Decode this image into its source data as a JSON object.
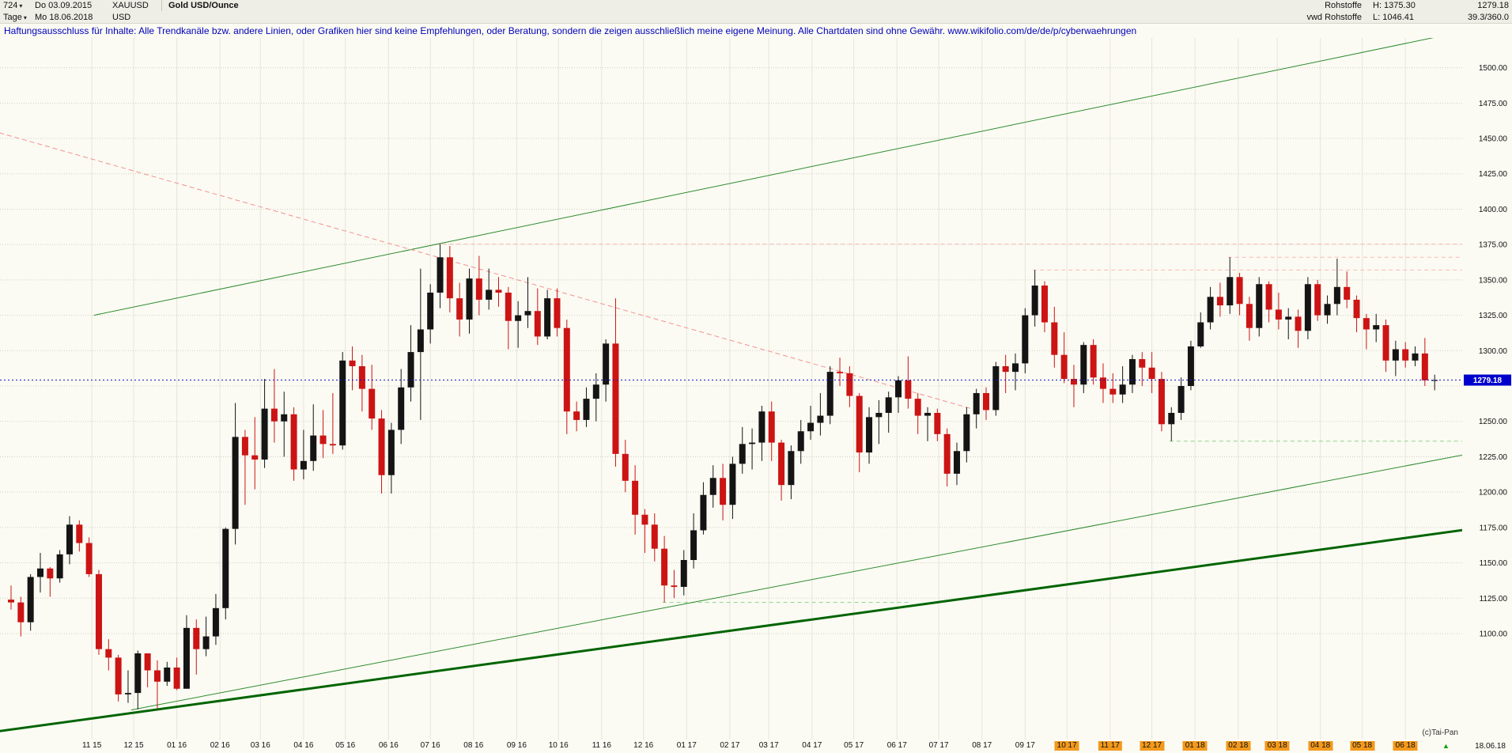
{
  "icons": {
    "chevron_down": "▾",
    "up_triangle": "▲"
  },
  "header": {
    "left": {
      "bars_value": "724",
      "timeframe": "Tage",
      "start_date": "Do 03.09.2015",
      "end_date": "Mo 18.06.2018",
      "symbol": "XAUUSD",
      "currency": "USD",
      "instrument": "Gold USD/Ounce"
    },
    "right": {
      "category": "Rohstoffe",
      "source": "vwd Rohstoffe",
      "high": "H: 1375.30",
      "low": "L: 1046.41",
      "last": "1279.18",
      "ratio": "39.3/360.0"
    }
  },
  "disclaimer": "Haftungsausschluss für Inhalte: Alle Trendkanäle bzw. andere Linien, oder Grafiken hier sind keine Empfehlungen, oder Beratung, sondern die zeigen ausschließlich meine eigene Meinung. Alle Chartdaten sind ohne Gewähr.  www.wikifolio.com/de/de/p/cyberwaehrungen",
  "footer": {
    "copyright": "(c)Tai-Pan",
    "last_date": "18.06.18"
  },
  "chart_data": {
    "type": "candlestick",
    "title": "Gold USD/Ounce",
    "symbol": "XAUUSD",
    "timeframe": "Tage",
    "x_start": "2015-09-04",
    "x_end": "2018-06-18",
    "ylim": [
      1026,
      1514
    ],
    "high": 1375.3,
    "low": 1046.41,
    "current_price": 1279.18,
    "current": {
      "display": "1279.18",
      "color": "#1414cc",
      "tag_bg": "#0000cd",
      "tag_fg": "#ffffff",
      "dash": "2,3"
    },
    "grid_ticks": [
      1100,
      1125,
      1150,
      1175,
      1200,
      1225,
      1250,
      1275,
      1300,
      1325,
      1350,
      1375,
      1400,
      1425,
      1450,
      1475,
      1500
    ],
    "label_ticks": [
      1500,
      1475,
      1450,
      1425,
      1400,
      1375,
      1350,
      1325,
      1300,
      1250,
      1225,
      1200,
      1175,
      1150,
      1125,
      1100
    ],
    "colors": {
      "up": "#141414",
      "down": "#cc1414",
      "grid_v": "#e6e5db",
      "grid_h": "#cfcfc5"
    },
    "months": [
      {
        "label": "11 15",
        "hl": false
      },
      {
        "label": "12 15",
        "hl": false
      },
      {
        "label": "01 16",
        "hl": false
      },
      {
        "label": "02 16",
        "hl": false
      },
      {
        "label": "03 16",
        "hl": false
      },
      {
        "label": "04 16",
        "hl": false
      },
      {
        "label": "05 16",
        "hl": false
      },
      {
        "label": "06 16",
        "hl": false
      },
      {
        "label": "07 16",
        "hl": false
      },
      {
        "label": "08 16",
        "hl": false
      },
      {
        "label": "09 16",
        "hl": false
      },
      {
        "label": "10 16",
        "hl": false
      },
      {
        "label": "11 16",
        "hl": false
      },
      {
        "label": "12 16",
        "hl": false
      },
      {
        "label": "01 17",
        "hl": false
      },
      {
        "label": "02 17",
        "hl": false
      },
      {
        "label": "03 17",
        "hl": false
      },
      {
        "label": "04 17",
        "hl": false
      },
      {
        "label": "05 17",
        "hl": false
      },
      {
        "label": "06 17",
        "hl": false
      },
      {
        "label": "07 17",
        "hl": false
      },
      {
        "label": "08 17",
        "hl": false
      },
      {
        "label": "09 17",
        "hl": false
      },
      {
        "label": "10 17",
        "hl": true
      },
      {
        "label": "11 17",
        "hl": true
      },
      {
        "label": "12 17",
        "hl": true
      },
      {
        "label": "01 18",
        "hl": true
      },
      {
        "label": "02 18",
        "hl": true
      },
      {
        "label": "03 18",
        "hl": true
      },
      {
        "label": "04 18",
        "hl": true
      },
      {
        "label": "05 18",
        "hl": true
      },
      {
        "label": "06 18",
        "hl": true
      }
    ],
    "trendlines": [
      {
        "name": "upper-channel-line",
        "p1": [
          8.5,
          1325
        ],
        "p2": [
          152,
          1530
        ],
        "color": "#2e8b2e",
        "width": 1,
        "dash": null
      },
      {
        "name": "inner-support-line",
        "p1": [
          12.3,
          1046
        ],
        "p2": [
          154,
          1233
        ],
        "color": "#2e8b2e",
        "width": 1,
        "dash": null
      },
      {
        "name": "main-support-line",
        "p1": [
          -1.2,
          1031
        ],
        "p2": [
          154,
          1178
        ],
        "color": "#006400",
        "width": 3,
        "dash": null
      },
      {
        "name": "falling-resistance-line",
        "p1": [
          -1.2,
          1454
        ],
        "p2": [
          99,
          1258
        ],
        "color": "#f49090",
        "width": 1,
        "dash": "6,4"
      }
    ],
    "hlines": [
      {
        "name": "high-1375-line",
        "price": 1375.3,
        "from": 43.5,
        "to": 154,
        "color": "#ffb6b6",
        "dash": "5,4"
      },
      {
        "name": "high-1357-line",
        "price": 1357,
        "from": 104.8,
        "to": 154,
        "color": "#ffb6b6",
        "dash": "5,4"
      },
      {
        "name": "high-1366-line",
        "price": 1366,
        "from": 124.8,
        "to": 154,
        "color": "#ffb6b6",
        "dash": "5,4"
      },
      {
        "name": "low-1236-line",
        "price": 1236,
        "from": 118.8,
        "to": 154,
        "color": "#8fd48f",
        "dash": "5,4"
      },
      {
        "name": "low-1122-line",
        "price": 1122,
        "from": 66.8,
        "to": 92,
        "color": "#8fd48f",
        "dash": "5,4"
      }
    ],
    "weekly_ohlc": [
      [
        1124,
        1134,
        1117,
        1122
      ],
      [
        1122,
        1126,
        1098,
        1108
      ],
      [
        1108,
        1142,
        1102,
        1140
      ],
      [
        1140,
        1157,
        1129,
        1146
      ],
      [
        1146,
        1147,
        1126,
        1139
      ],
      [
        1139,
        1159,
        1136,
        1156
      ],
      [
        1156,
        1183,
        1149,
        1177
      ],
      [
        1177,
        1180,
        1158,
        1164
      ],
      [
        1164,
        1168,
        1140,
        1142
      ],
      [
        1142,
        1145,
        1085,
        1089
      ],
      [
        1089,
        1096,
        1074,
        1083
      ],
      [
        1083,
        1085,
        1052,
        1057
      ],
      [
        1057,
        1074,
        1051,
        1058
      ],
      [
        1058,
        1088,
        1046.4,
        1086
      ],
      [
        1086,
        1086,
        1062,
        1074
      ],
      [
        1074,
        1081,
        1047,
        1066
      ],
      [
        1066,
        1080,
        1063,
        1076
      ],
      [
        1076,
        1083,
        1060,
        1061
      ],
      [
        1061,
        1113,
        1061,
        1104
      ],
      [
        1104,
        1110,
        1071,
        1089
      ],
      [
        1089,
        1112,
        1084,
        1098
      ],
      [
        1098,
        1128,
        1092,
        1118
      ],
      [
        1118,
        1175,
        1110,
        1174
      ],
      [
        1174,
        1263,
        1163,
        1239
      ],
      [
        1239,
        1244,
        1191,
        1226
      ],
      [
        1226,
        1253,
        1202,
        1223
      ],
      [
        1223,
        1280,
        1217,
        1259
      ],
      [
        1259,
        1287,
        1235,
        1250
      ],
      [
        1250,
        1271,
        1225,
        1255
      ],
      [
        1255,
        1260,
        1208,
        1216
      ],
      [
        1216,
        1244,
        1209,
        1222
      ],
      [
        1222,
        1262,
        1215,
        1240
      ],
      [
        1240,
        1258,
        1224,
        1234
      ],
      [
        1234,
        1270,
        1227,
        1233
      ],
      [
        1233,
        1299,
        1230,
        1293
      ],
      [
        1293,
        1303,
        1272,
        1289
      ],
      [
        1289,
        1297,
        1257,
        1273
      ],
      [
        1273,
        1290,
        1244,
        1252
      ],
      [
        1252,
        1258,
        1199,
        1212
      ],
      [
        1212,
        1249,
        1199,
        1244
      ],
      [
        1244,
        1287,
        1234,
        1274
      ],
      [
        1274,
        1318,
        1264,
        1299
      ],
      [
        1299,
        1358,
        1251,
        1315
      ],
      [
        1315,
        1347,
        1305,
        1341
      ],
      [
        1341,
        1375.3,
        1330,
        1366
      ],
      [
        1366,
        1374,
        1327,
        1337
      ],
      [
        1337,
        1348,
        1310,
        1322
      ],
      [
        1322,
        1358,
        1312,
        1351
      ],
      [
        1351,
        1367,
        1325,
        1336
      ],
      [
        1336,
        1358,
        1329,
        1343
      ],
      [
        1343,
        1352,
        1331,
        1341
      ],
      [
        1341,
        1345,
        1301,
        1321
      ],
      [
        1321,
        1335,
        1302,
        1325
      ],
      [
        1325,
        1352,
        1316,
        1328
      ],
      [
        1328,
        1344,
        1304,
        1310
      ],
      [
        1310,
        1343,
        1308,
        1337
      ],
      [
        1337,
        1344,
        1310,
        1316
      ],
      [
        1316,
        1322,
        1241,
        1257
      ],
      [
        1257,
        1264,
        1243,
        1251
      ],
      [
        1251,
        1274,
        1246,
        1266
      ],
      [
        1266,
        1284,
        1250,
        1276
      ],
      [
        1276,
        1308,
        1264,
        1305
      ],
      [
        1305,
        1337,
        1218,
        1227
      ],
      [
        1227,
        1237,
        1200,
        1208
      ],
      [
        1208,
        1219,
        1170,
        1184
      ],
      [
        1184,
        1188,
        1157,
        1177
      ],
      [
        1177,
        1185,
        1151,
        1160
      ],
      [
        1160,
        1169,
        1122,
        1134
      ],
      [
        1134,
        1145,
        1125,
        1133
      ],
      [
        1133,
        1159,
        1127,
        1152
      ],
      [
        1152,
        1185,
        1146,
        1173
      ],
      [
        1173,
        1207,
        1170,
        1198
      ],
      [
        1198,
        1219,
        1189,
        1210
      ],
      [
        1210,
        1220,
        1180,
        1191
      ],
      [
        1191,
        1225,
        1181,
        1220
      ],
      [
        1220,
        1246,
        1213,
        1234
      ],
      [
        1234,
        1245,
        1216,
        1235
      ],
      [
        1235,
        1261,
        1222,
        1257
      ],
      [
        1257,
        1264,
        1222,
        1235
      ],
      [
        1235,
        1237,
        1194,
        1205
      ],
      [
        1205,
        1233,
        1195,
        1229
      ],
      [
        1229,
        1251,
        1220,
        1243
      ],
      [
        1243,
        1261,
        1237,
        1249
      ],
      [
        1249,
        1270,
        1240,
        1254
      ],
      [
        1254,
        1289,
        1248,
        1285
      ],
      [
        1285,
        1295,
        1275,
        1284
      ],
      [
        1284,
        1289,
        1260,
        1268
      ],
      [
        1268,
        1270,
        1214,
        1228
      ],
      [
        1228,
        1260,
        1220,
        1253
      ],
      [
        1253,
        1265,
        1234,
        1256
      ],
      [
        1256,
        1271,
        1242,
        1267
      ],
      [
        1267,
        1282,
        1256,
        1279
      ],
      [
        1279,
        1296,
        1259,
        1266
      ],
      [
        1266,
        1270,
        1241,
        1254
      ],
      [
        1254,
        1260,
        1236,
        1256
      ],
      [
        1256,
        1259,
        1236,
        1241
      ],
      [
        1241,
        1245,
        1204,
        1213
      ],
      [
        1213,
        1235,
        1205,
        1229
      ],
      [
        1229,
        1260,
        1221,
        1255
      ],
      [
        1255,
        1273,
        1245,
        1270
      ],
      [
        1270,
        1274,
        1251,
        1258
      ],
      [
        1258,
        1292,
        1254,
        1289
      ],
      [
        1289,
        1297,
        1270,
        1285
      ],
      [
        1285,
        1298,
        1272,
        1291
      ],
      [
        1291,
        1330,
        1284,
        1325
      ],
      [
        1325,
        1357,
        1317,
        1346
      ],
      [
        1346,
        1349,
        1313,
        1320
      ],
      [
        1320,
        1331,
        1288,
        1297
      ],
      [
        1297,
        1313,
        1277,
        1280
      ],
      [
        1280,
        1290,
        1260,
        1276
      ],
      [
        1276,
        1306,
        1270,
        1304
      ],
      [
        1304,
        1308,
        1276,
        1281
      ],
      [
        1281,
        1291,
        1263,
        1273
      ],
      [
        1273,
        1284,
        1263,
        1269
      ],
      [
        1269,
        1289,
        1263,
        1276
      ],
      [
        1276,
        1297,
        1270,
        1294
      ],
      [
        1294,
        1299,
        1275,
        1288
      ],
      [
        1288,
        1299,
        1270,
        1280
      ],
      [
        1280,
        1285,
        1243,
        1248
      ],
      [
        1248,
        1260,
        1236,
        1256
      ],
      [
        1256,
        1281,
        1251,
        1275
      ],
      [
        1275,
        1307,
        1272,
        1303
      ],
      [
        1303,
        1327,
        1302,
        1320
      ],
      [
        1320,
        1345,
        1315,
        1338
      ],
      [
        1338,
        1348,
        1324,
        1332
      ],
      [
        1332,
        1366,
        1326,
        1352
      ],
      [
        1352,
        1355,
        1325,
        1333
      ],
      [
        1333,
        1338,
        1307,
        1316
      ],
      [
        1316,
        1352,
        1310,
        1347
      ],
      [
        1347,
        1349,
        1320,
        1329
      ],
      [
        1329,
        1341,
        1315,
        1322
      ],
      [
        1322,
        1330,
        1308,
        1324
      ],
      [
        1324,
        1329,
        1302,
        1314
      ],
      [
        1314,
        1352,
        1308,
        1347
      ],
      [
        1347,
        1350,
        1321,
        1325
      ],
      [
        1325,
        1339,
        1319,
        1333
      ],
      [
        1333,
        1365,
        1325,
        1345
      ],
      [
        1345,
        1356,
        1330,
        1336
      ],
      [
        1336,
        1339,
        1313,
        1323
      ],
      [
        1323,
        1326,
        1301,
        1315
      ],
      [
        1315,
        1326,
        1306,
        1318
      ],
      [
        1318,
        1322,
        1285,
        1293
      ],
      [
        1293,
        1307,
        1282,
        1301
      ],
      [
        1301,
        1306,
        1288,
        1293
      ],
      [
        1293,
        1303,
        1289,
        1298
      ],
      [
        1298,
        1309,
        1275,
        1279
      ],
      [
        1279,
        1283,
        1272,
        1279.18
      ]
    ]
  }
}
